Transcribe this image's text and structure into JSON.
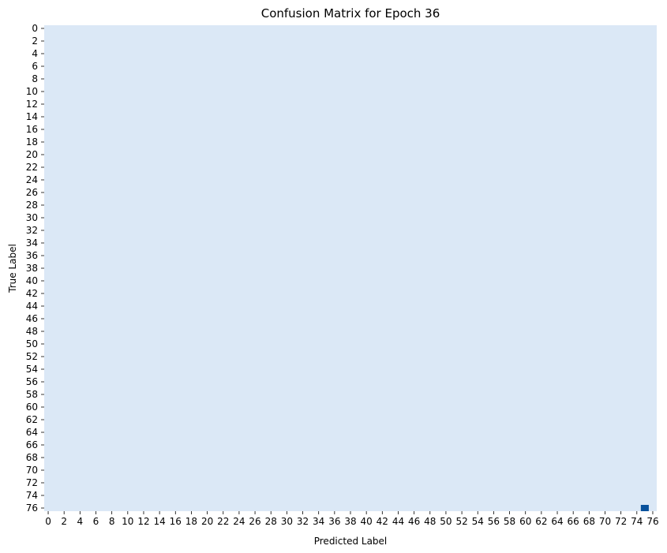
{
  "chart_data": {
    "type": "heatmap",
    "title": "Confusion Matrix for Epoch 36",
    "xlabel": "Predicted Label",
    "ylabel": "True Label",
    "n_classes": 77,
    "x_ticks": [
      0,
      2,
      4,
      6,
      8,
      10,
      12,
      14,
      16,
      18,
      20,
      22,
      24,
      26,
      28,
      30,
      32,
      34,
      36,
      38,
      40,
      42,
      44,
      46,
      48,
      50,
      52,
      54,
      56,
      58,
      60,
      62,
      64,
      66,
      68,
      70,
      72,
      74,
      76
    ],
    "y_ticks": [
      0,
      2,
      4,
      6,
      8,
      10,
      12,
      14,
      16,
      18,
      20,
      22,
      24,
      26,
      28,
      30,
      32,
      34,
      36,
      38,
      40,
      42,
      44,
      46,
      48,
      50,
      52,
      54,
      56,
      58,
      60,
      62,
      64,
      66,
      68,
      70,
      72,
      74,
      76
    ],
    "background_value": 0,
    "nonzero_cells": [
      {
        "true": 76,
        "predicted": 75,
        "value": 1
      }
    ],
    "colormap": {
      "low": "#dbe8f6",
      "high": "#08519c"
    },
    "colorbar": false,
    "grid": false
  }
}
